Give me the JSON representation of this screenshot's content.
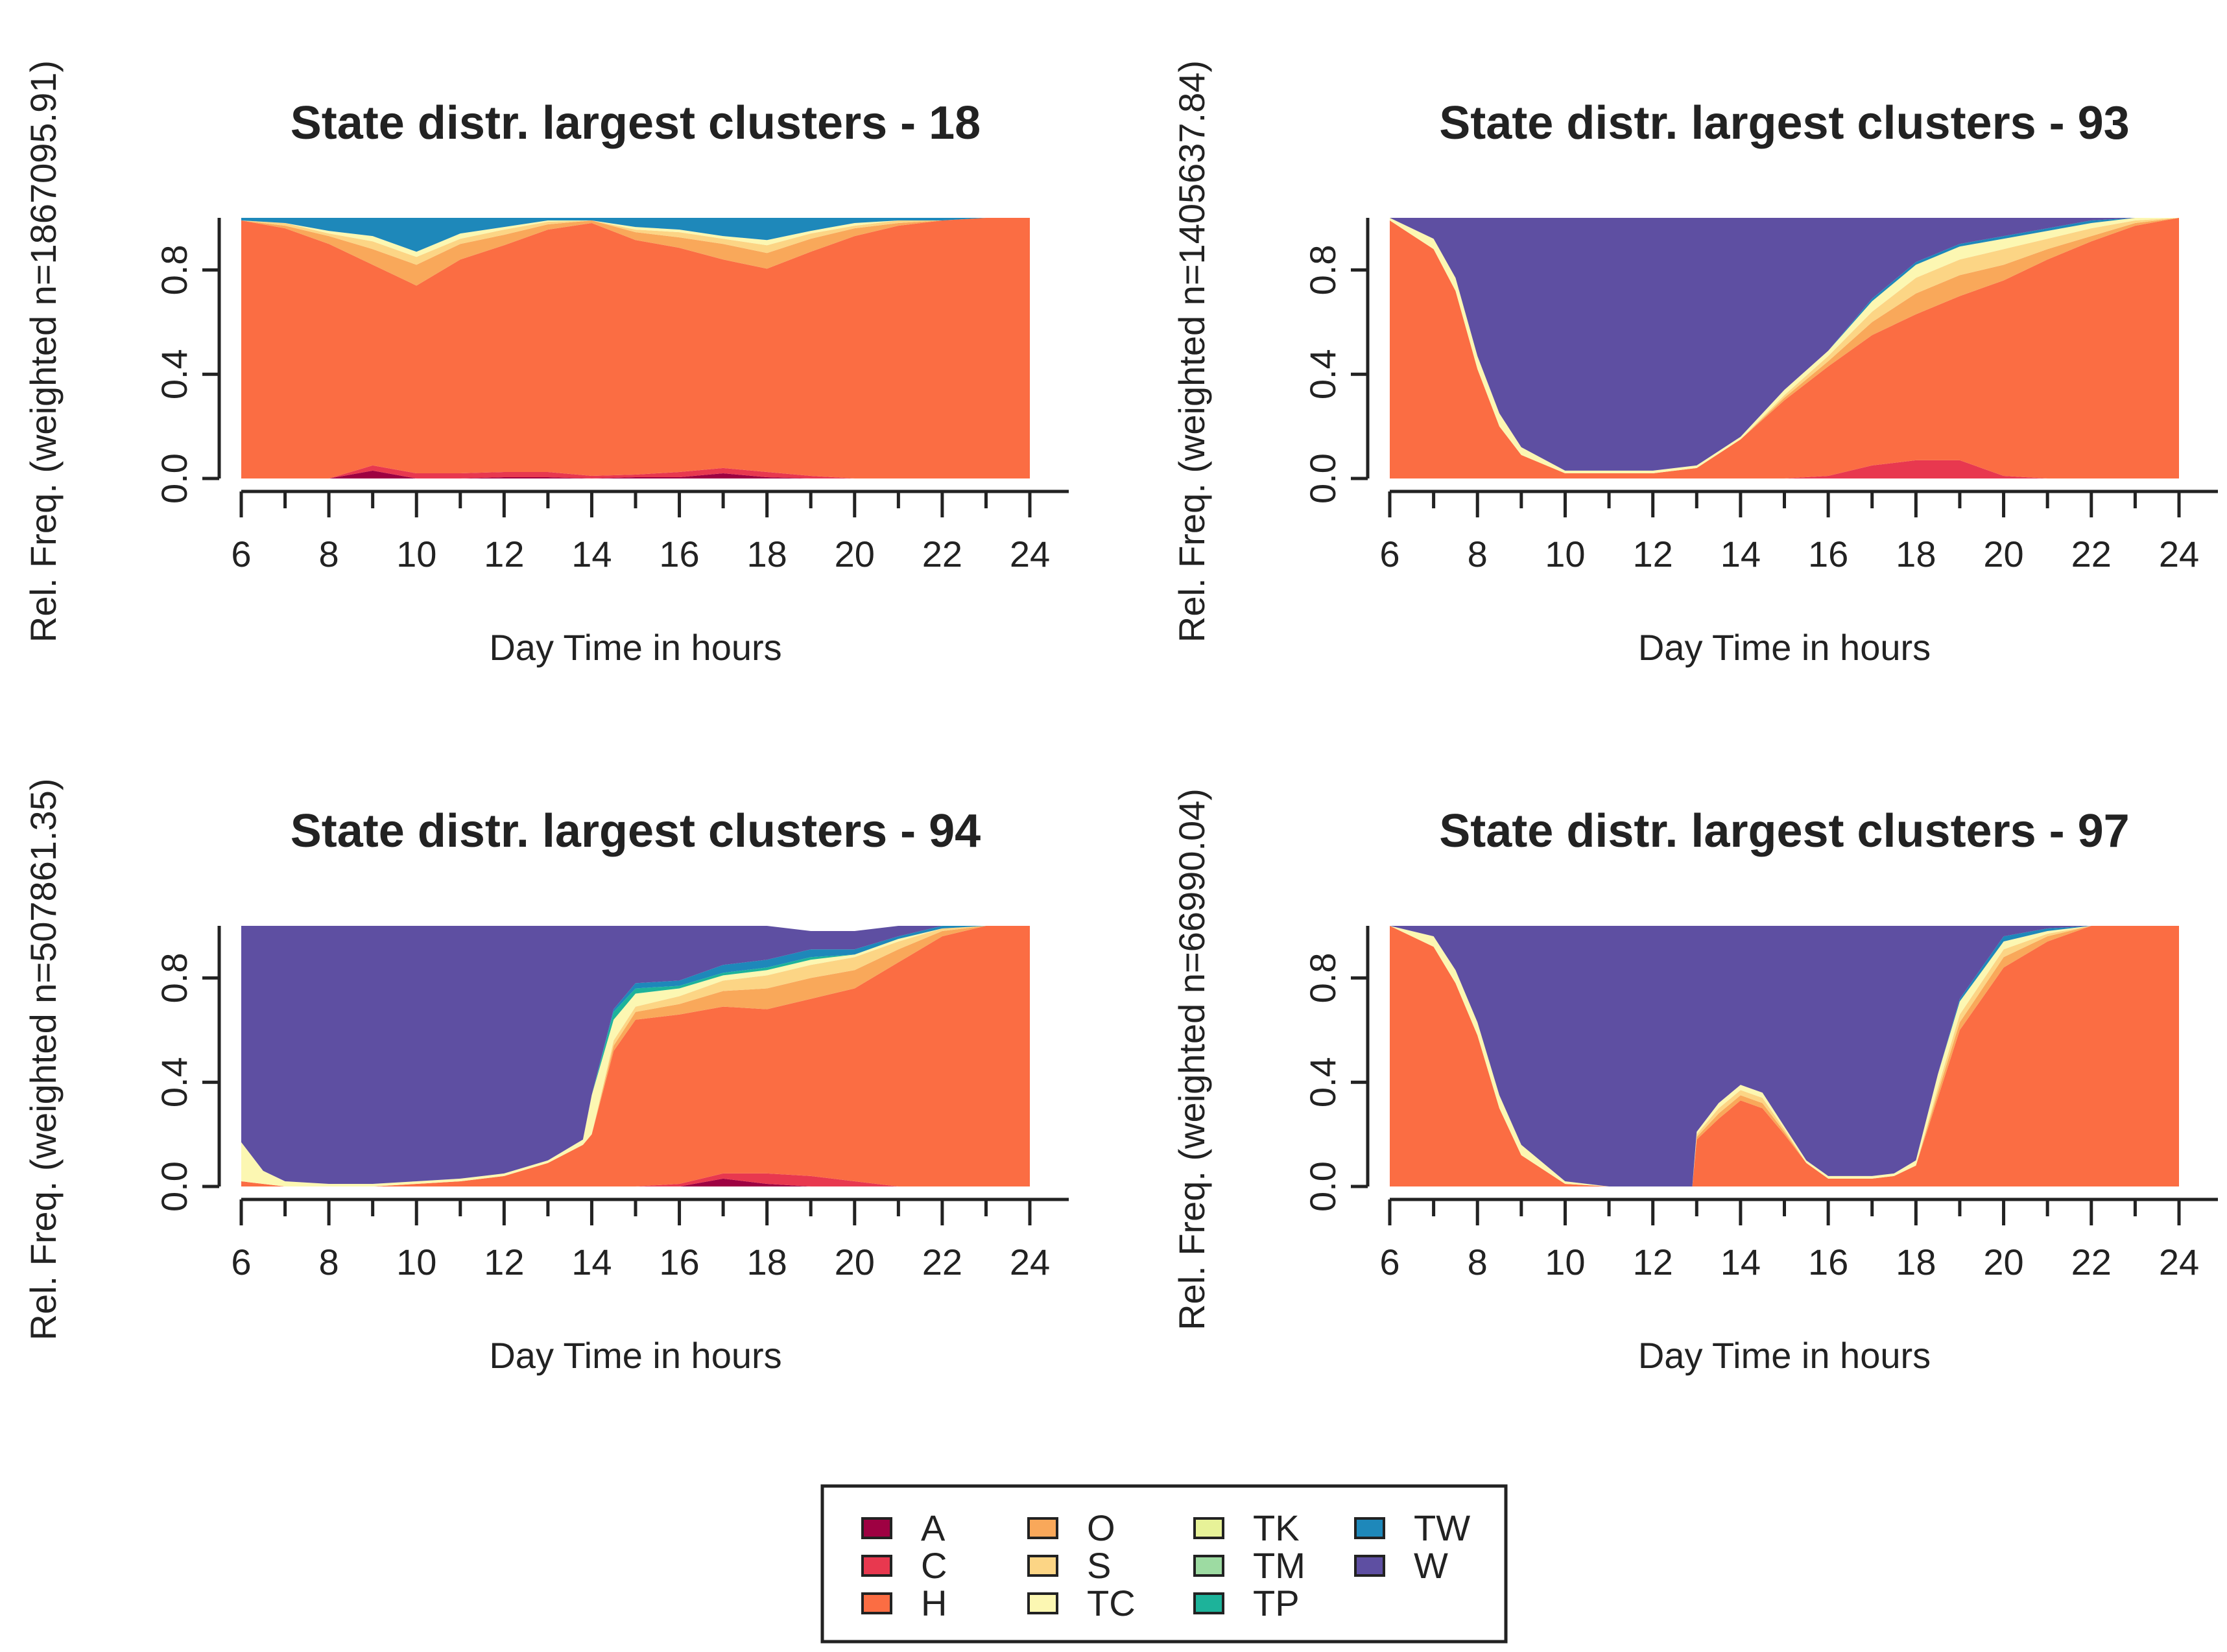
{
  "figure": {
    "states": [
      {
        "code": "A",
        "color": "#9E0142"
      },
      {
        "code": "C",
        "color": "#E8384F"
      },
      {
        "code": "H",
        "color": "#FB6D43"
      },
      {
        "code": "O",
        "color": "#F9A85A"
      },
      {
        "code": "S",
        "color": "#FCD585"
      },
      {
        "code": "TC",
        "color": "#FCF7B2"
      },
      {
        "code": "TK",
        "color": "#E7F298"
      },
      {
        "code": "TM",
        "color": "#9DDBA2"
      },
      {
        "code": "TP",
        "color": "#1DB39A"
      },
      {
        "code": "TW",
        "color": "#1E88BA"
      },
      {
        "code": "W",
        "color": "#5E4FA2"
      }
    ],
    "legend_columns": [
      [
        "A",
        "C",
        "H"
      ],
      [
        "O",
        "S",
        "TC"
      ],
      [
        "TK",
        "TM",
        "TP"
      ],
      [
        "TW",
        "W"
      ]
    ]
  },
  "chart_data": [
    {
      "type": "area",
      "stacked": true,
      "title": "State distr. largest clusters - 18",
      "xlabel": "Day Time in hours",
      "ylabel": "Rel. Freq. (weighted n=1867095.91)",
      "xlim": [
        6,
        24
      ],
      "ylim": [
        0,
        1
      ],
      "xticks": [
        6,
        8,
        10,
        12,
        14,
        16,
        18,
        20,
        22,
        24
      ],
      "yticks": [
        0.0,
        0.4,
        0.8
      ],
      "ytick_labels": [
        "0.0",
        "0.4",
        "0.8"
      ],
      "x": [
        6,
        7,
        8,
        9,
        10,
        11,
        12,
        13,
        14,
        15,
        16,
        17,
        18,
        19,
        20,
        21,
        22,
        23,
        24
      ],
      "series": [
        {
          "name": "A",
          "values": [
            0,
            0,
            0,
            0.03,
            0,
            0,
            0.005,
            0.005,
            0,
            0.005,
            0.005,
            0.02,
            0.005,
            0,
            0,
            0,
            0,
            0,
            0
          ]
        },
        {
          "name": "C",
          "values": [
            0,
            0,
            0,
            0.02,
            0.02,
            0.02,
            0.02,
            0.02,
            0.01,
            0.01,
            0.02,
            0.02,
            0.02,
            0.01,
            0,
            0,
            0,
            0,
            0
          ]
        },
        {
          "name": "H",
          "values": [
            0.99,
            0.96,
            0.9,
            0.77,
            0.72,
            0.82,
            0.87,
            0.93,
            0.97,
            0.9,
            0.86,
            0.8,
            0.78,
            0.86,
            0.93,
            0.97,
            0.99,
            1.0,
            1.0
          ]
        },
        {
          "name": "O",
          "values": [
            0,
            0.01,
            0.03,
            0.06,
            0.08,
            0.06,
            0.04,
            0.02,
            0.01,
            0.03,
            0.04,
            0.06,
            0.06,
            0.05,
            0.03,
            0.01,
            0,
            0,
            0
          ]
        },
        {
          "name": "S",
          "values": [
            0,
            0.01,
            0.01,
            0.03,
            0.03,
            0.02,
            0.02,
            0.01,
            0,
            0.01,
            0.02,
            0.02,
            0.03,
            0.02,
            0.01,
            0.01,
            0,
            0,
            0
          ]
        },
        {
          "name": "TC",
          "values": [
            0,
            0,
            0.01,
            0.02,
            0.02,
            0.02,
            0.01,
            0.005,
            0,
            0.01,
            0.01,
            0.01,
            0.02,
            0.01,
            0.01,
            0,
            0,
            0,
            0
          ]
        },
        {
          "name": "TW",
          "values": [
            0.01,
            0.02,
            0.05,
            0.07,
            0.13,
            0.06,
            0.035,
            0.01,
            0.01,
            0.04,
            0.045,
            0.07,
            0.085,
            0.05,
            0.02,
            0.01,
            0.01,
            0,
            0
          ]
        }
      ]
    },
    {
      "type": "area",
      "stacked": true,
      "title": "State distr. largest clusters - 93",
      "xlabel": "Day Time in hours",
      "ylabel": "Rel. Freq. (weighted n=1405637.84)",
      "xlim": [
        6,
        24
      ],
      "ylim": [
        0,
        1
      ],
      "xticks": [
        6,
        8,
        10,
        12,
        14,
        16,
        18,
        20,
        22,
        24
      ],
      "yticks": [
        0.0,
        0.4,
        0.8
      ],
      "ytick_labels": [
        "0.0",
        "0.4",
        "0.8"
      ],
      "x": [
        6,
        7,
        7.5,
        8,
        8.5,
        9,
        10,
        11,
        12,
        13,
        14,
        15,
        16,
        17,
        18,
        19,
        20,
        21,
        22,
        23,
        24
      ],
      "series": [
        {
          "name": "C",
          "values": [
            0,
            0,
            0,
            0,
            0,
            0,
            0,
            0,
            0,
            0,
            0,
            0,
            0.01,
            0.05,
            0.07,
            0.07,
            0.01,
            0,
            0,
            0,
            0
          ]
        },
        {
          "name": "H",
          "values": [
            0.99,
            0.88,
            0.72,
            0.42,
            0.2,
            0.09,
            0.02,
            0.02,
            0.02,
            0.04,
            0.15,
            0.3,
            0.42,
            0.5,
            0.56,
            0.63,
            0.75,
            0.84,
            0.91,
            0.97,
            1.0
          ]
        },
        {
          "name": "O",
          "values": [
            0,
            0,
            0,
            0,
            0,
            0,
            0,
            0,
            0,
            0,
            0,
            0.01,
            0.02,
            0.05,
            0.08,
            0.08,
            0.06,
            0.04,
            0.02,
            0.01,
            0
          ]
        },
        {
          "name": "S",
          "values": [
            0,
            0,
            0,
            0,
            0,
            0,
            0,
            0,
            0,
            0,
            0,
            0.01,
            0.02,
            0.04,
            0.06,
            0.06,
            0.06,
            0.04,
            0.03,
            0.01,
            0
          ]
        },
        {
          "name": "TC",
          "values": [
            0.01,
            0.04,
            0.05,
            0.05,
            0.05,
            0.03,
            0.01,
            0.01,
            0.01,
            0.01,
            0.01,
            0.02,
            0.02,
            0.04,
            0.05,
            0.05,
            0.04,
            0.03,
            0.02,
            0.01,
            0
          ]
        },
        {
          "name": "TW",
          "values": [
            0,
            0,
            0,
            0,
            0,
            0,
            0,
            0,
            0,
            0,
            0,
            0,
            0,
            0.01,
            0.01,
            0.01,
            0.01,
            0.01,
            0.01,
            0,
            0
          ]
        },
        {
          "name": "W",
          "values": [
            0,
            0.08,
            0.23,
            0.53,
            0.75,
            0.88,
            0.97,
            0.97,
            0.97,
            0.95,
            0.84,
            0.66,
            0.51,
            0.31,
            0.17,
            0.1,
            0.07,
            0.04,
            0.01,
            0,
            0
          ]
        }
      ]
    },
    {
      "type": "area",
      "stacked": true,
      "title": "State distr. largest clusters - 94",
      "xlabel": "Day Time in hours",
      "ylabel": "Rel. Freq. (weighted n=507861.35)",
      "xlim": [
        6,
        24
      ],
      "ylim": [
        0,
        1
      ],
      "xticks": [
        6,
        8,
        10,
        12,
        14,
        16,
        18,
        20,
        22,
        24
      ],
      "yticks": [
        0.0,
        0.4,
        0.8
      ],
      "ytick_labels": [
        "0.0",
        "0.4",
        "0.8"
      ],
      "x": [
        6,
        6.5,
        7,
        8,
        9,
        10,
        11,
        12,
        13,
        13.8,
        14,
        14.5,
        15,
        16,
        17,
        18,
        19,
        20,
        21,
        22,
        23,
        24
      ],
      "series": [
        {
          "name": "A",
          "values": [
            0,
            0,
            0,
            0,
            0,
            0,
            0,
            0,
            0,
            0,
            0,
            0,
            0,
            0,
            0.03,
            0.01,
            0,
            0,
            0,
            0,
            0,
            0
          ]
        },
        {
          "name": "C",
          "values": [
            0,
            0,
            0,
            0,
            0,
            0,
            0,
            0,
            0,
            0,
            0,
            0,
            0,
            0.01,
            0.02,
            0.04,
            0.04,
            0.02,
            0,
            0,
            0,
            0
          ]
        },
        {
          "name": "H",
          "values": [
            0.02,
            0.01,
            0,
            0,
            0,
            0.01,
            0.02,
            0.04,
            0.09,
            0.16,
            0.2,
            0.52,
            0.64,
            0.65,
            0.64,
            0.63,
            0.68,
            0.74,
            0.86,
            0.96,
            1.0,
            1.0
          ]
        },
        {
          "name": "O",
          "values": [
            0,
            0,
            0,
            0,
            0,
            0,
            0,
            0,
            0,
            0,
            0,
            0.02,
            0.03,
            0.04,
            0.06,
            0.08,
            0.08,
            0.07,
            0.05,
            0.02,
            0,
            0
          ]
        },
        {
          "name": "S",
          "values": [
            0,
            0,
            0,
            0,
            0,
            0,
            0,
            0,
            0,
            0,
            0,
            0.02,
            0.02,
            0.03,
            0.04,
            0.05,
            0.05,
            0.05,
            0.03,
            0.01,
            0,
            0
          ]
        },
        {
          "name": "TC",
          "values": [
            0.15,
            0.05,
            0.02,
            0.01,
            0.01,
            0.01,
            0.01,
            0.01,
            0.01,
            0.02,
            0.15,
            0.08,
            0.05,
            0.03,
            0.02,
            0.02,
            0.02,
            0.01,
            0.01,
            0,
            0,
            0
          ]
        },
        {
          "name": "TP",
          "values": [
            0,
            0,
            0,
            0,
            0,
            0,
            0,
            0,
            0,
            0,
            0,
            0.03,
            0.02,
            0.01,
            0.01,
            0.01,
            0.01,
            0,
            0,
            0,
            0,
            0
          ]
        },
        {
          "name": "TW",
          "values": [
            0,
            0,
            0,
            0,
            0,
            0,
            0,
            0,
            0,
            0,
            0,
            0.01,
            0.02,
            0.02,
            0.03,
            0.03,
            0.03,
            0.02,
            0.01,
            0.01,
            0,
            0
          ]
        },
        {
          "name": "W",
          "values": [
            0.83,
            0.94,
            0.98,
            0.99,
            0.99,
            0.98,
            0.97,
            0.95,
            0.9,
            0.82,
            0.65,
            0.32,
            0.22,
            0.21,
            0.15,
            0.13,
            0.07,
            0.07,
            0.04,
            0,
            0,
            0
          ]
        }
      ]
    },
    {
      "type": "area",
      "stacked": true,
      "title": "State distr. largest clusters - 97",
      "xlabel": "Day Time in hours",
      "ylabel": "Rel. Freq. (weighted n=66990.04)",
      "xlim": [
        6,
        24
      ],
      "ylim": [
        0,
        1
      ],
      "xticks": [
        6,
        8,
        10,
        12,
        14,
        16,
        18,
        20,
        22,
        24
      ],
      "yticks": [
        0.0,
        0.4,
        0.8
      ],
      "ytick_labels": [
        "0.0",
        "0.4",
        "0.8"
      ],
      "x": [
        6,
        7,
        7.5,
        8,
        8.5,
        9,
        10,
        11,
        12,
        12.9,
        13,
        13.5,
        14,
        14.5,
        15,
        15.5,
        16,
        17,
        17.5,
        18,
        18.5,
        19,
        20,
        21,
        22,
        23,
        24
      ],
      "series": [
        {
          "name": "H",
          "values": [
            1.0,
            0.92,
            0.78,
            0.58,
            0.3,
            0.12,
            0.01,
            0,
            0,
            0,
            0.18,
            0.26,
            0.33,
            0.3,
            0.2,
            0.09,
            0.03,
            0.03,
            0.04,
            0.08,
            0.34,
            0.6,
            0.84,
            0.94,
            1.0,
            1.0,
            1.0
          ]
        },
        {
          "name": "O",
          "values": [
            0,
            0,
            0,
            0,
            0,
            0,
            0,
            0,
            0,
            0,
            0.01,
            0.02,
            0.02,
            0.02,
            0.01,
            0,
            0,
            0,
            0,
            0,
            0.02,
            0.03,
            0.04,
            0.02,
            0,
            0,
            0
          ]
        },
        {
          "name": "S",
          "values": [
            0,
            0,
            0,
            0,
            0,
            0,
            0,
            0,
            0,
            0,
            0.01,
            0.02,
            0.02,
            0.02,
            0.01,
            0,
            0,
            0,
            0,
            0,
            0.02,
            0.03,
            0.03,
            0.01,
            0,
            0,
            0
          ]
        },
        {
          "name": "TC",
          "values": [
            0,
            0.04,
            0.05,
            0.05,
            0.05,
            0.04,
            0.01,
            0,
            0,
            0,
            0.01,
            0.02,
            0.02,
            0.02,
            0.01,
            0.01,
            0.01,
            0.01,
            0.01,
            0.02,
            0.05,
            0.05,
            0.03,
            0.01,
            0,
            0,
            0
          ]
        },
        {
          "name": "TW",
          "values": [
            0,
            0,
            0,
            0,
            0,
            0,
            0,
            0,
            0,
            0,
            0,
            0,
            0,
            0,
            0,
            0,
            0,
            0,
            0,
            0,
            0,
            0.01,
            0.02,
            0.01,
            0,
            0,
            0
          ]
        },
        {
          "name": "W",
          "values": [
            0,
            0.04,
            0.17,
            0.37,
            0.65,
            0.84,
            0.98,
            1.0,
            1.0,
            1.0,
            0.79,
            0.68,
            0.61,
            0.64,
            0.77,
            0.9,
            0.96,
            0.96,
            0.95,
            0.9,
            0.57,
            0.28,
            0.04,
            0.01,
            0,
            0,
            0
          ]
        }
      ]
    }
  ]
}
